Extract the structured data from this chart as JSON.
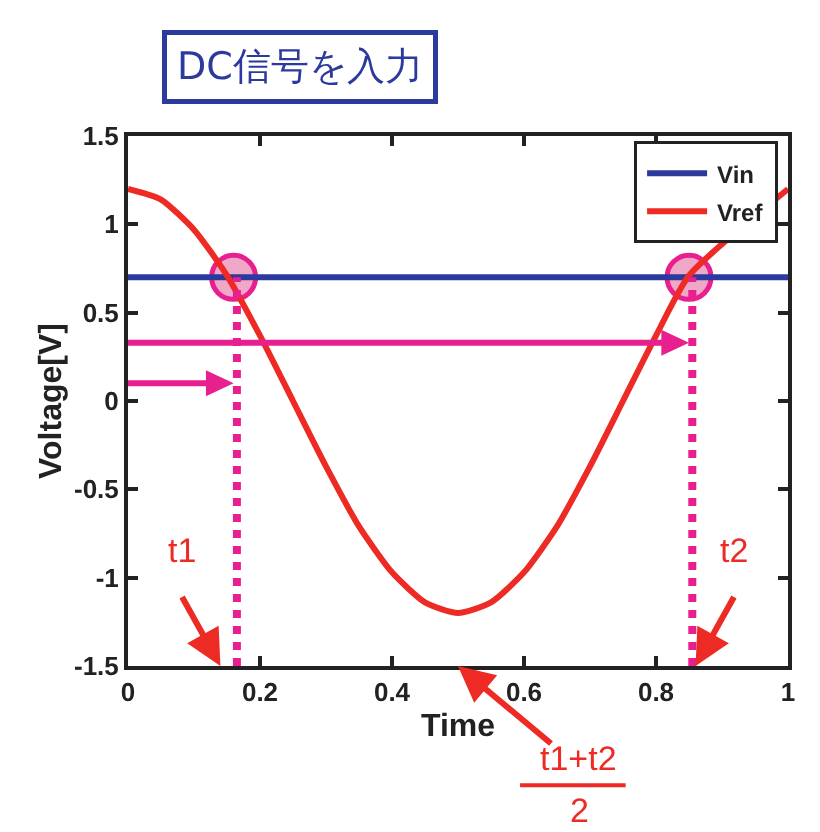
{
  "chart_data": {
    "type": "line",
    "title": "DC信号を入力",
    "xlabel": "Time",
    "ylabel": "Voltage[V]",
    "x": [
      0,
      0.05,
      0.1,
      0.15,
      0.2,
      0.25,
      0.3,
      0.35,
      0.4,
      0.45,
      0.5,
      0.55,
      0.6,
      0.65,
      0.7,
      0.75,
      0.8,
      0.85,
      0.9,
      0.95,
      1
    ],
    "series": [
      {
        "name": "Vin",
        "color": "#2b3a9c",
        "x": [
          0,
          1
        ],
        "values": [
          0.7,
          0.7
        ]
      },
      {
        "name": "Vref",
        "color": "#ee2a24",
        "values": [
          1.2,
          1.14,
          0.97,
          0.71,
          0.37,
          0,
          -0.37,
          -0.71,
          -0.97,
          -1.14,
          -1.2,
          -1.14,
          -0.97,
          -0.71,
          -0.37,
          0,
          0.37,
          0.71,
          null,
          null,
          1.2
        ]
      },
      {
        "type": "scatter",
        "marker": "circle",
        "color": "#f0a8c8",
        "x": [
          0.16,
          0.85
        ],
        "values": [
          0.7,
          0.7
        ]
      }
    ],
    "ref_lines": [
      {
        "axis": "x",
        "value": 0.165,
        "color": "#e8208f",
        "line_style": "dotted"
      },
      {
        "axis": "x",
        "value": 0.855,
        "color": "#e8208f",
        "line_style": "dotted"
      }
    ],
    "annotations": [
      "t1",
      "t2",
      "t1+t2",
      "2"
    ],
    "xlim": [
      0,
      1
    ],
    "ylim": [
      -1.5,
      1.5
    ],
    "xticks": [
      0,
      0.2,
      0.4,
      0.6,
      0.8,
      1
    ],
    "yticks": [
      -1.5,
      -1,
      -0.5,
      0,
      0.5,
      1,
      1.5
    ],
    "legend": "top right",
    "marker": "none",
    "line_style": "solid"
  }
}
